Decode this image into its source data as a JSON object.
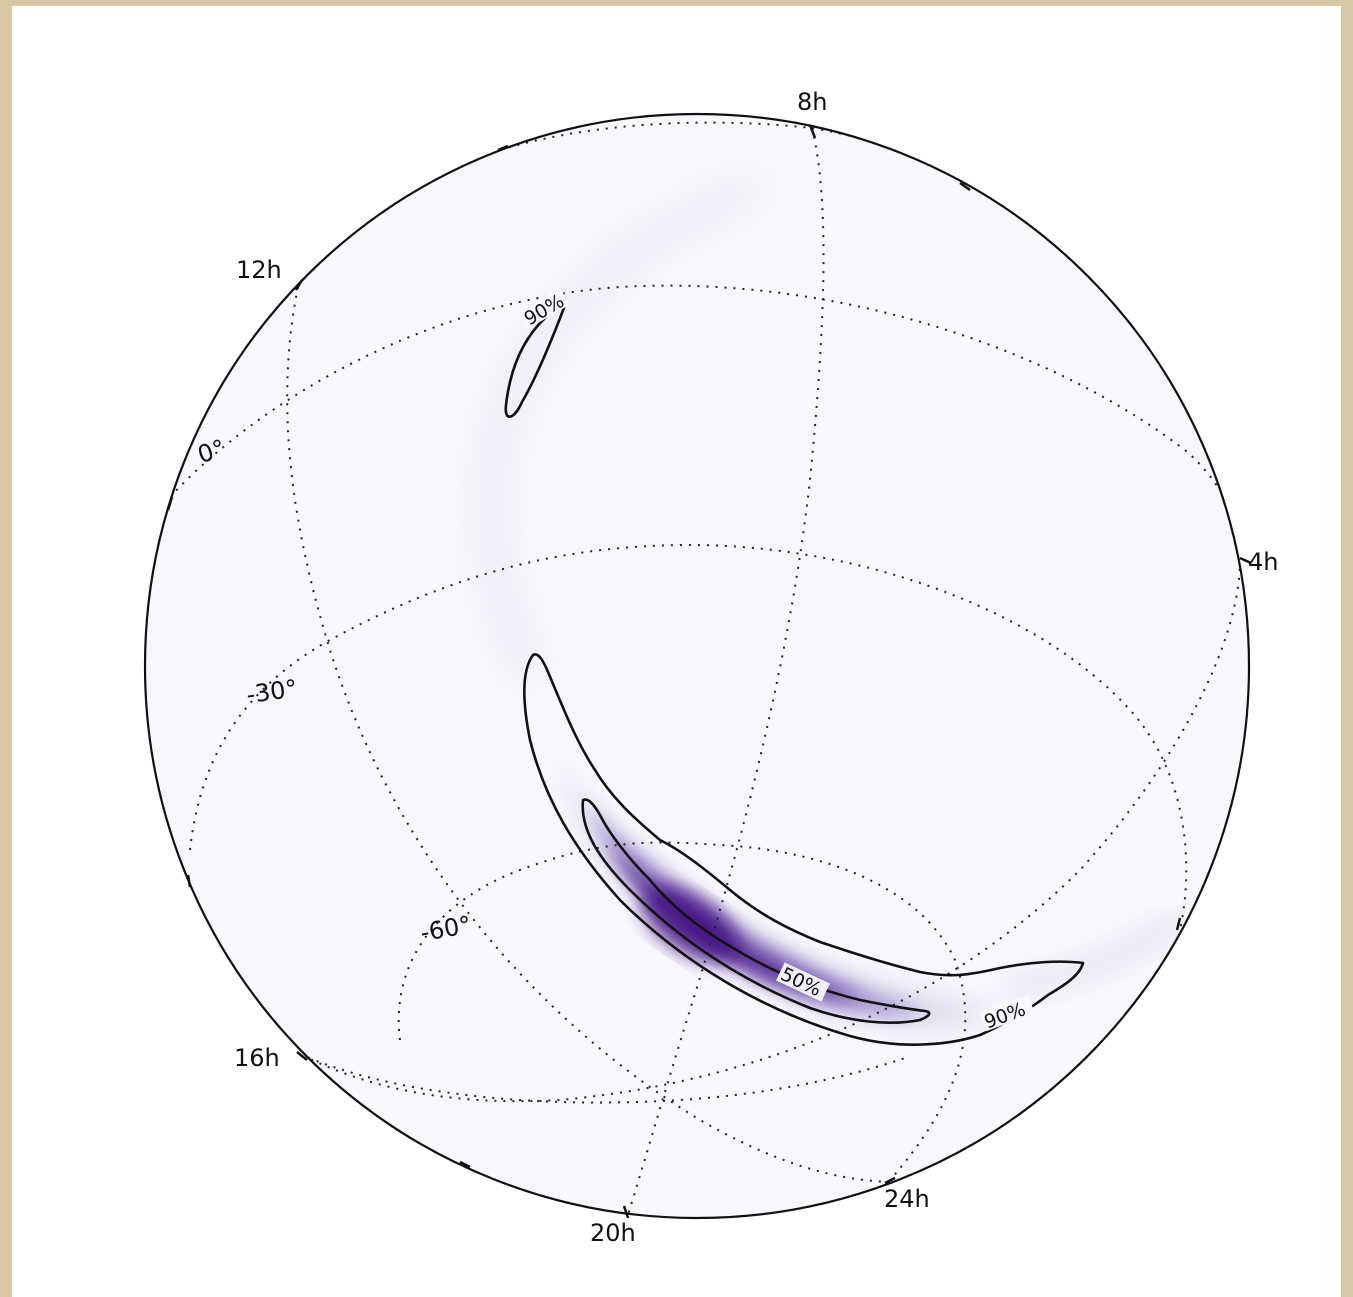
{
  "chart_data": {
    "type": "heatmap",
    "projection": "orthographic",
    "description_of_data": "sky localization probability density",
    "ra_labels": [
      "8h",
      "4h",
      "24h",
      "20h",
      "16h",
      "12h"
    ],
    "dec_labels": [
      "0°",
      "-30°",
      "-60°"
    ],
    "contours": [
      {
        "level": "50%",
        "label": "50%"
      },
      {
        "level": "90%",
        "label": "90%"
      }
    ],
    "contour_labels": [
      "90%",
      "50%",
      "90%"
    ],
    "grid": true,
    "colormap": "Purples",
    "colors": {
      "peak": "#4a1486",
      "mid": "#8a7cc0",
      "low": "#efedf5",
      "background": "#f7f7fc"
    }
  }
}
